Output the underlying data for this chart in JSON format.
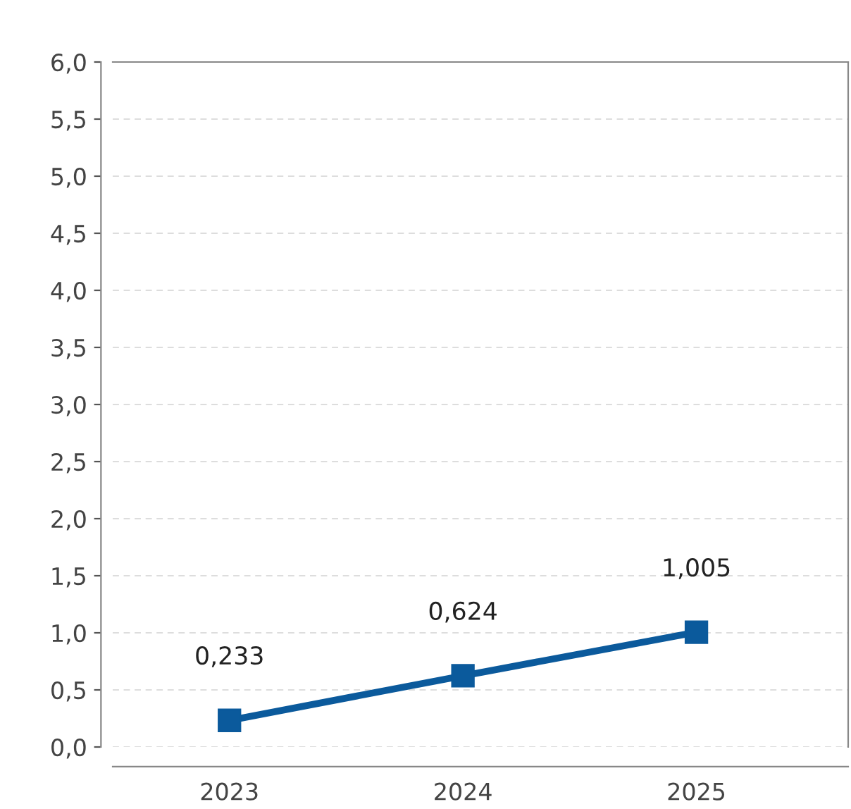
{
  "chart_data": {
    "type": "line",
    "categories": [
      "2023",
      "2024",
      "2025"
    ],
    "series": [
      {
        "color": "#0b5a9c",
        "values": [
          0.233,
          0.624,
          1.005
        ],
        "value_labels": [
          "0,233",
          "0,624",
          "1,005"
        ]
      }
    ],
    "ylim": [
      0,
      6
    ],
    "yticks": [
      {
        "value": 0,
        "label": "0,0"
      },
      {
        "value": 0.5,
        "label": "0,5"
      },
      {
        "value": 1,
        "label": "1,0"
      },
      {
        "value": 1.5,
        "label": "1,5"
      },
      {
        "value": 2,
        "label": "2,0"
      },
      {
        "value": 2.5,
        "label": "2,5"
      },
      {
        "value": 3,
        "label": "3,0"
      },
      {
        "value": 3.5,
        "label": "3,5"
      },
      {
        "value": 4,
        "label": "4,0"
      },
      {
        "value": 4.5,
        "label": "4,5"
      },
      {
        "value": 5,
        "label": "5,0"
      },
      {
        "value": 5.5,
        "label": "5,5"
      },
      {
        "value": 6,
        "label": "6,0"
      }
    ],
    "grid": "y",
    "marker": "square",
    "line_style": "solid"
  }
}
